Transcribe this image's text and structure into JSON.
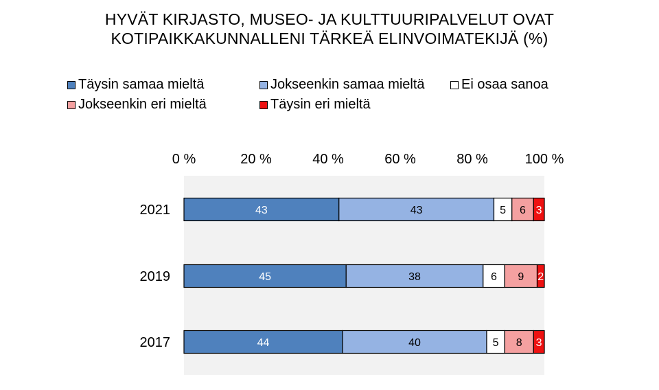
{
  "chart_data": {
    "type": "bar",
    "orientation": "horizontal",
    "stacked": true,
    "title": "HYVÄT KIRJASTO, MUSEO- JA KULTTUURIPALVELUT OVAT KOTIPAIKKAKUNNALLENI TÄRKEÄ ELINVOIMATEKIJÄ (%)",
    "title_lines": [
      "HYVÄT KIRJASTO, MUSEO- JA KULTTUURIPALVELUT OVAT",
      "KOTIPAIKKAKUNNALLENI TÄRKEÄ ELINVOIMATEKIJÄ (%)"
    ],
    "categories": [
      "2021",
      "2019",
      "2017"
    ],
    "series": [
      {
        "name": "Täysin samaa mieltä",
        "color": "#4f81bd",
        "label_color": "#ffffff",
        "values": [
          43,
          45,
          44
        ]
      },
      {
        "name": "Jokseenkin samaa mieltä",
        "color": "#95b3e3",
        "label_color": "#000000",
        "values": [
          43,
          38,
          40
        ]
      },
      {
        "name": "Ei osaa sanoa",
        "color": "#ffffff",
        "label_color": "#000000",
        "values": [
          5,
          6,
          5
        ]
      },
      {
        "name": "Jokseenkin eri mieltä",
        "color": "#f4a0a0",
        "label_color": "#000000",
        "values": [
          6,
          9,
          8
        ]
      },
      {
        "name": "Täysin eri mieltä",
        "color": "#ee1111",
        "label_color": "#ffffff",
        "values": [
          3,
          2,
          3
        ]
      }
    ],
    "x_ticks": [
      "0 %",
      "20 %",
      "40 %",
      "60 %",
      "80 %",
      "100 %"
    ],
    "xlim": [
      0,
      100
    ],
    "x_axis_position": "top",
    "legend_position": "top",
    "plot_background": "#f2f2f2",
    "grid": false
  }
}
